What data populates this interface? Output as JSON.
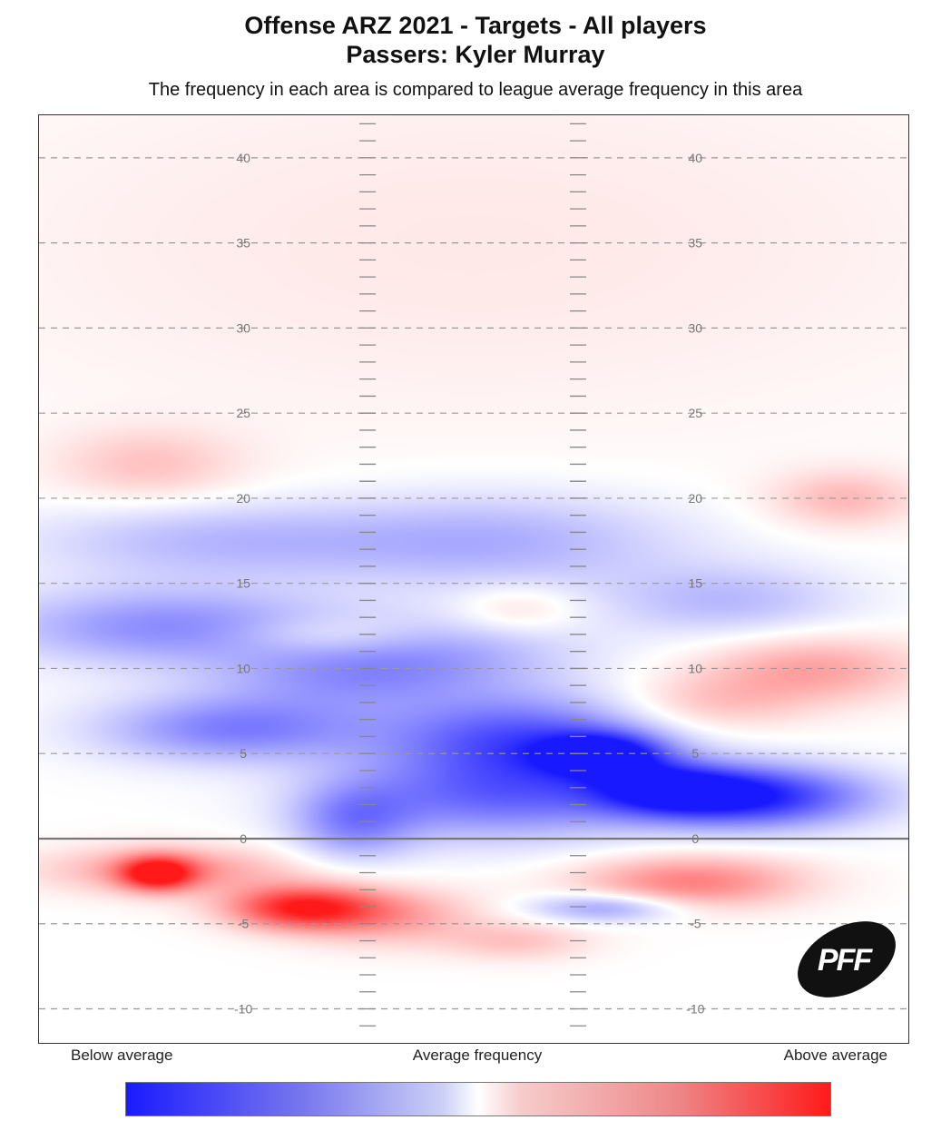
{
  "title_line1": "Offense ARZ 2021 - Targets - All players",
  "title_line2": "Passers: Kyler Murray",
  "subtitle": "The frequency in each area is compared to league average frequency in this area",
  "legend": {
    "below": "Below average",
    "average": "Average frequency",
    "above": "Above average"
  },
  "logo_text": "PFF",
  "colors": {
    "below": "#1a1aff",
    "average": "#ffffff",
    "above": "#ff1a1a"
  },
  "chart_data": {
    "type": "heatmap",
    "y_tick_labels": [
      "40",
      "35",
      "30",
      "25",
      "20",
      "15",
      "10",
      "5",
      "0",
      "-5",
      "-10"
    ],
    "y_ticks": [
      40,
      35,
      30,
      25,
      20,
      15,
      10,
      5,
      0,
      -5,
      -10
    ],
    "ylim": [
      -12,
      42.5
    ],
    "xlim": [
      -1,
      1
    ],
    "line_of_scrimmage": 0,
    "grid": true,
    "scale": "diverging blue-white-red (below average / average / above average)",
    "hotspots": [
      {
        "x": -0.7,
        "y": 12.5,
        "v": -0.5,
        "sx": 0.28,
        "sy": 1.6
      },
      {
        "x": -0.55,
        "y": 6.5,
        "v": -0.55,
        "sx": 0.22,
        "sy": 1.4
      },
      {
        "x": -0.3,
        "y": 9.5,
        "v": -0.35,
        "sx": 0.22,
        "sy": 1.4
      },
      {
        "x": -0.6,
        "y": 17.5,
        "v": -0.3,
        "sx": 0.3,
        "sy": 1.6
      },
      {
        "x": 0.05,
        "y": 17.5,
        "v": -0.35,
        "sx": 0.3,
        "sy": 2.0
      },
      {
        "x": 0.1,
        "y": 6.0,
        "v": -0.7,
        "sx": 0.22,
        "sy": 1.8
      },
      {
        "x": 0.3,
        "y": 5.0,
        "v": -0.85,
        "sx": 0.1,
        "sy": 0.9
      },
      {
        "x": 0.05,
        "y": 2.5,
        "v": -0.6,
        "sx": 0.25,
        "sy": 1.8
      },
      {
        "x": -0.28,
        "y": 1.0,
        "v": -0.45,
        "sx": 0.1,
        "sy": 1.6
      },
      {
        "x": 0.63,
        "y": 2.5,
        "v": -0.95,
        "sx": 0.2,
        "sy": 1.3
      },
      {
        "x": 0.45,
        "y": 3.0,
        "v": -0.6,
        "sx": 0.12,
        "sy": 1.0
      },
      {
        "x": 0.3,
        "y": -4.0,
        "v": -0.45,
        "sx": 0.12,
        "sy": 0.6
      },
      {
        "x": 0.58,
        "y": 14.0,
        "v": -0.3,
        "sx": 0.2,
        "sy": 1.5
      },
      {
        "x": -0.06,
        "y": 11.0,
        "v": -0.3,
        "sx": 0.22,
        "sy": 1.5
      },
      {
        "x": -0.73,
        "y": -2.0,
        "v": 0.9,
        "sx": 0.06,
        "sy": 0.7
      },
      {
        "x": -0.7,
        "y": -1.8,
        "v": 0.45,
        "sx": 0.2,
        "sy": 1.0
      },
      {
        "x": -0.4,
        "y": -4.0,
        "v": 0.9,
        "sx": 0.12,
        "sy": 0.9
      },
      {
        "x": -0.2,
        "y": -4.5,
        "v": 0.4,
        "sx": 0.15,
        "sy": 1.2
      },
      {
        "x": 0.5,
        "y": -2.5,
        "v": 0.55,
        "sx": 0.18,
        "sy": 1.1
      },
      {
        "x": 0.78,
        "y": 10.0,
        "v": 0.4,
        "sx": 0.18,
        "sy": 1.4
      },
      {
        "x": 0.55,
        "y": 8.0,
        "v": 0.25,
        "sx": 0.15,
        "sy": 1.2
      },
      {
        "x": -0.75,
        "y": 22.0,
        "v": 0.25,
        "sx": 0.15,
        "sy": 1.5
      },
      {
        "x": 0.85,
        "y": 20.0,
        "v": 0.3,
        "sx": 0.12,
        "sy": 1.2
      },
      {
        "x": 0.1,
        "y": 13.5,
        "v": 0.2,
        "sx": 0.1,
        "sy": 1.0
      },
      {
        "x": -0.35,
        "y": 12.0,
        "v": 0.2,
        "sx": 0.15,
        "sy": 0.8
      },
      {
        "x": 0.1,
        "y": -6.0,
        "v": 0.25,
        "sx": 0.12,
        "sy": 0.8
      },
      {
        "x": 0.0,
        "y": 35.0,
        "v": 0.1,
        "sx": 0.9,
        "sy": 8.0
      }
    ]
  }
}
